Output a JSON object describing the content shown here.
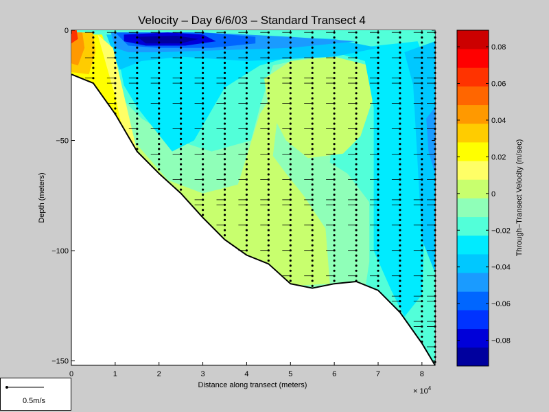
{
  "chart_data": {
    "type": "heatmap",
    "title": "Velocity – Day 6/6/03 – Standard Transect 4",
    "xlabel": "Distance along transect (meters)",
    "ylabel": "Depth (meters)",
    "x_multiplier": "× 10",
    "x_multiplier_exponent": "4",
    "xlim": [
      0,
      8.3
    ],
    "ylim": [
      -152,
      0
    ],
    "x_ticks": [
      "0",
      "1",
      "2",
      "3",
      "4",
      "5",
      "6",
      "7",
      "8"
    ],
    "y_ticks": [
      "0",
      "−50",
      "−100",
      "−150"
    ],
    "y_tick_values": [
      0,
      -50,
      -100,
      -150
    ],
    "bottom_profile": {
      "x": [
        0,
        0.5,
        1,
        1.5,
        2,
        2.5,
        3,
        3.5,
        4,
        4.5,
        5,
        5.5,
        6,
        6.5,
        7,
        7.5,
        8,
        8.3
      ],
      "depth": [
        -20,
        -24,
        -38,
        -55,
        -65,
        -74,
        -85,
        -95,
        -102,
        -106,
        -115,
        -117,
        -115,
        -114,
        -118,
        -128,
        -142,
        -152
      ]
    },
    "colorbar": {
      "label": "Through−Transect Velocity (m/sec)",
      "range": [
        -0.094,
        0.089
      ],
      "tick_labels": [
        "0.08",
        "0.06",
        "0.04",
        "0.02",
        "0",
        "−0.02",
        "−0.04",
        "−0.06",
        "−0.08"
      ],
      "tick_values": [
        0.08,
        0.06,
        0.04,
        0.02,
        0,
        -0.02,
        -0.04,
        -0.06,
        -0.08
      ],
      "colors": [
        "#00009e",
        "#0000d9",
        "#0033ff",
        "#0066ff",
        "#1a9bff",
        "#00c8ff",
        "#00ebff",
        "#52ffd9",
        "#8fffb8",
        "#c8ff6e",
        "#ffff66",
        "#ffff00",
        "#ffcc00",
        "#ff9900",
        "#ff6600",
        "#ff3300",
        "#ff0000",
        "#cc0000"
      ]
    },
    "scale_arrow_label": "0.5m/s"
  }
}
